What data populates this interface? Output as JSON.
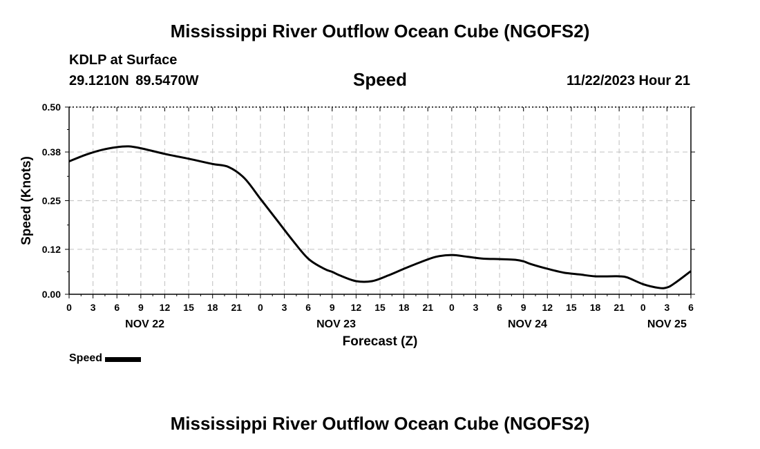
{
  "header": {
    "title": "Mississippi River Outflow Ocean Cube (NGOFS2)",
    "station": "KDLP at Surface",
    "coords": "29.1210N  89.5470W",
    "parameter": "Speed",
    "datetime": "11/22/2023 Hour 21"
  },
  "footer": {
    "title": "Mississippi River Outflow Ocean Cube (NGOFS2)"
  },
  "legend": {
    "label": "Speed"
  },
  "colors": {
    "line": "#000000",
    "grid": "#c8c8c8"
  },
  "chart_data": {
    "type": "line",
    "title": "Speed",
    "xlabel": "Forecast (Z)",
    "ylabel": "Speed (Knots)",
    "xlim": [
      0,
      78
    ],
    "ylim": [
      0,
      0.5
    ],
    "yticks": [
      0.0,
      0.12,
      0.25,
      0.38,
      0.5
    ],
    "ytick_labels": [
      "0.00",
      "0.12",
      "0.25",
      "0.38",
      "0.50"
    ],
    "xticks": [
      0,
      3,
      6,
      9,
      12,
      15,
      18,
      21,
      24,
      27,
      30,
      33,
      36,
      39,
      42,
      45,
      48,
      51,
      54,
      57,
      60,
      63,
      66,
      69,
      72,
      75,
      78
    ],
    "xtick_labels": [
      "0",
      "3",
      "6",
      "9",
      "12",
      "15",
      "18",
      "21",
      "0",
      "3",
      "6",
      "9",
      "12",
      "15",
      "18",
      "21",
      "0",
      "3",
      "6",
      "9",
      "12",
      "15",
      "18",
      "21",
      "0",
      "3",
      "6"
    ],
    "day_labels": [
      {
        "hour": 9.5,
        "label": "NOV 22"
      },
      {
        "hour": 33.5,
        "label": "NOV 23"
      },
      {
        "hour": 57.5,
        "label": "NOV 24"
      },
      {
        "hour": 75,
        "label": "NOV 25"
      }
    ],
    "grid": true,
    "legend_position": "bottom-left",
    "series": [
      {
        "name": "Speed",
        "x": [
          0,
          2,
          4,
          6,
          7.5,
          9,
          12,
          15,
          18,
          20,
          22,
          24,
          26,
          28,
          30,
          32,
          33,
          34,
          36,
          38,
          40,
          42,
          44,
          46,
          48,
          50,
          52,
          54,
          56,
          57,
          58,
          60,
          62,
          64,
          66,
          68,
          69,
          70,
          72,
          74,
          75,
          76,
          78
        ],
        "y": [
          0.355,
          0.372,
          0.385,
          0.393,
          0.395,
          0.39,
          0.375,
          0.362,
          0.348,
          0.34,
          0.31,
          0.255,
          0.2,
          0.145,
          0.095,
          0.068,
          0.06,
          0.05,
          0.035,
          0.035,
          0.05,
          0.068,
          0.085,
          0.1,
          0.105,
          0.1,
          0.095,
          0.094,
          0.092,
          0.088,
          0.08,
          0.068,
          0.058,
          0.053,
          0.048,
          0.048,
          0.048,
          0.045,
          0.027,
          0.017,
          0.018,
          0.03,
          0.062
        ]
      }
    ]
  }
}
